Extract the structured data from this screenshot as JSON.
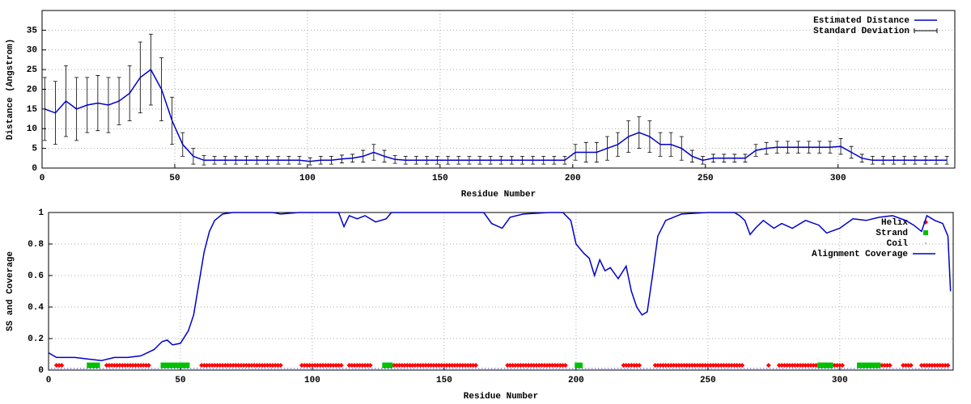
{
  "chart_data": [
    {
      "type": "line",
      "xlabel": "Residue Number",
      "ylabel": "Distance (Angstrom)",
      "xlim": [
        0,
        344
      ],
      "ylim": [
        0,
        40
      ],
      "xticks": [
        0,
        50,
        100,
        150,
        200,
        250,
        300
      ],
      "yticks": [
        0,
        5,
        10,
        15,
        20,
        25,
        30,
        35
      ],
      "grid": true,
      "legend": "upper right",
      "series": [
        {
          "name": "Estimated Distance",
          "error_name": "Standard Deviation",
          "color": "#0000cc",
          "error_color": "#000000",
          "x": [
            1,
            5,
            9,
            13,
            17,
            21,
            25,
            29,
            33,
            37,
            41,
            45,
            49,
            53,
            57,
            61,
            65,
            69,
            73,
            77,
            81,
            85,
            89,
            93,
            97,
            101,
            105,
            109,
            113,
            117,
            121,
            125,
            129,
            133,
            137,
            141,
            145,
            149,
            153,
            157,
            161,
            165,
            169,
            173,
            177,
            181,
            185,
            189,
            193,
            197,
            201,
            205,
            209,
            213,
            217,
            221,
            225,
            229,
            233,
            237,
            241,
            245,
            249,
            253,
            257,
            261,
            265,
            269,
            273,
            277,
            281,
            285,
            289,
            293,
            297,
            301,
            305,
            309,
            313,
            317,
            321,
            325,
            329,
            333,
            337,
            341
          ],
          "values": [
            15,
            14,
            17,
            15,
            16,
            16.5,
            16,
            17,
            19,
            23,
            25,
            20,
            12,
            6,
            3,
            2,
            2,
            2,
            2,
            2,
            2,
            2,
            2,
            2,
            2,
            1.7,
            2,
            2,
            2.3,
            2.5,
            3,
            4,
            3,
            2.2,
            2,
            2,
            2,
            2,
            2,
            2,
            2,
            2,
            2,
            2,
            2,
            2,
            2,
            2,
            2,
            2,
            4,
            4,
            4,
            5,
            6,
            8,
            9,
            8,
            6,
            6,
            5,
            3,
            2,
            2.5,
            2.5,
            2.5,
            2.5,
            4.5,
            5,
            5.3,
            5.3,
            5.3,
            5.3,
            5.3,
            5.3,
            5.5,
            4,
            2.5,
            2,
            2,
            2,
            2,
            2,
            2,
            2,
            2
          ],
          "errors": [
            8,
            8,
            9,
            8,
            7,
            7,
            7,
            6,
            7,
            9,
            9,
            8,
            6,
            3,
            2,
            1.2,
            1,
            1,
            1,
            1,
            1,
            1,
            1,
            1,
            1,
            0.9,
            1,
            1,
            1,
            1,
            1.5,
            2,
            1.5,
            1,
            1,
            1,
            1,
            1,
            1,
            1,
            1,
            1,
            1,
            1,
            1,
            1,
            1,
            1,
            1,
            1,
            2,
            2.5,
            2.5,
            3,
            3,
            4,
            4,
            4,
            3,
            3,
            3,
            1.5,
            1,
            1,
            1,
            1,
            1,
            1.5,
            1.5,
            1.5,
            1.5,
            1.5,
            1.5,
            1.5,
            1.5,
            2,
            1.5,
            1,
            1,
            1,
            1,
            1,
            1,
            1,
            1,
            1
          ]
        }
      ]
    },
    {
      "type": "line",
      "xlabel": "Residue Number",
      "ylabel": "SS and Coverage",
      "xlim": [
        0,
        343
      ],
      "ylim": [
        0,
        1
      ],
      "xticks": [
        0,
        50,
        100,
        150,
        200,
        250,
        300
      ],
      "yticks": [
        0,
        0.2,
        0.4,
        0.6,
        0.8,
        1
      ],
      "grid": true,
      "legend": "upper right",
      "series": [
        {
          "name": "Helix",
          "color": "#ff0000",
          "marker": "diamond",
          "level": 0.03,
          "segments": [
            [
              3,
              5
            ],
            [
              22,
              38
            ],
            [
              58,
              88
            ],
            [
              96,
              111
            ],
            [
              114,
              122
            ],
            [
              130,
              162
            ],
            [
              174,
              196
            ],
            [
              218,
              224
            ],
            [
              230,
              263
            ],
            [
              273,
              273
            ],
            [
              277,
              291
            ],
            [
              298,
              301
            ],
            [
              316,
              319
            ],
            [
              324,
              327
            ],
            [
              331,
              341
            ]
          ]
        },
        {
          "name": "Strand",
          "color": "#00c000",
          "marker": "square",
          "level": 0.03,
          "segments": [
            [
              15,
              19
            ],
            [
              43,
              53
            ],
            [
              127,
              130
            ],
            [
              200,
              202
            ],
            [
              292,
              297
            ],
            [
              307,
              315
            ]
          ]
        },
        {
          "name": "Coil",
          "color": "#0000cc",
          "marker": "dot",
          "level": 0.01,
          "segments": [
            [
              1,
              342
            ]
          ]
        },
        {
          "name": "Alignment Coverage",
          "color": "#0000cc",
          "marker": "line",
          "x": [
            0,
            3,
            10,
            15,
            20,
            25,
            30,
            35,
            40,
            43,
            45,
            47,
            50,
            53,
            55,
            57,
            59,
            61,
            63,
            66,
            70,
            85,
            88,
            95,
            110,
            112,
            114,
            117,
            120,
            124,
            128,
            130,
            165,
            168,
            172,
            175,
            180,
            190,
            195,
            198,
            200,
            203,
            205,
            207,
            209,
            211,
            213,
            216,
            219,
            221,
            223,
            225,
            227,
            229,
            231,
            234,
            240,
            250,
            260,
            262,
            264,
            266,
            268,
            271,
            275,
            278,
            282,
            287,
            292,
            295,
            300,
            305,
            310,
            315,
            320,
            325,
            328,
            331,
            333,
            336,
            339,
            341,
            342
          ],
          "values": [
            0.11,
            0.08,
            0.08,
            0.07,
            0.06,
            0.08,
            0.08,
            0.09,
            0.13,
            0.18,
            0.19,
            0.16,
            0.17,
            0.25,
            0.35,
            0.55,
            0.75,
            0.88,
            0.95,
            0.99,
            1,
            1,
            0.99,
            1,
            1,
            0.91,
            0.98,
            0.96,
            0.98,
            0.94,
            0.96,
            1,
            1,
            0.93,
            0.9,
            0.97,
            0.99,
            1,
            1,
            0.95,
            0.8,
            0.74,
            0.71,
            0.6,
            0.7,
            0.63,
            0.65,
            0.58,
            0.66,
            0.5,
            0.4,
            0.35,
            0.37,
            0.6,
            0.85,
            0.95,
            0.99,
            1,
            1,
            0.98,
            0.95,
            0.86,
            0.9,
            0.95,
            0.9,
            0.93,
            0.9,
            0.95,
            0.92,
            0.87,
            0.9,
            0.96,
            0.95,
            0.97,
            0.98,
            0.95,
            0.92,
            0.88,
            0.98,
            0.95,
            0.93,
            0.85,
            0.5
          ]
        }
      ]
    }
  ]
}
